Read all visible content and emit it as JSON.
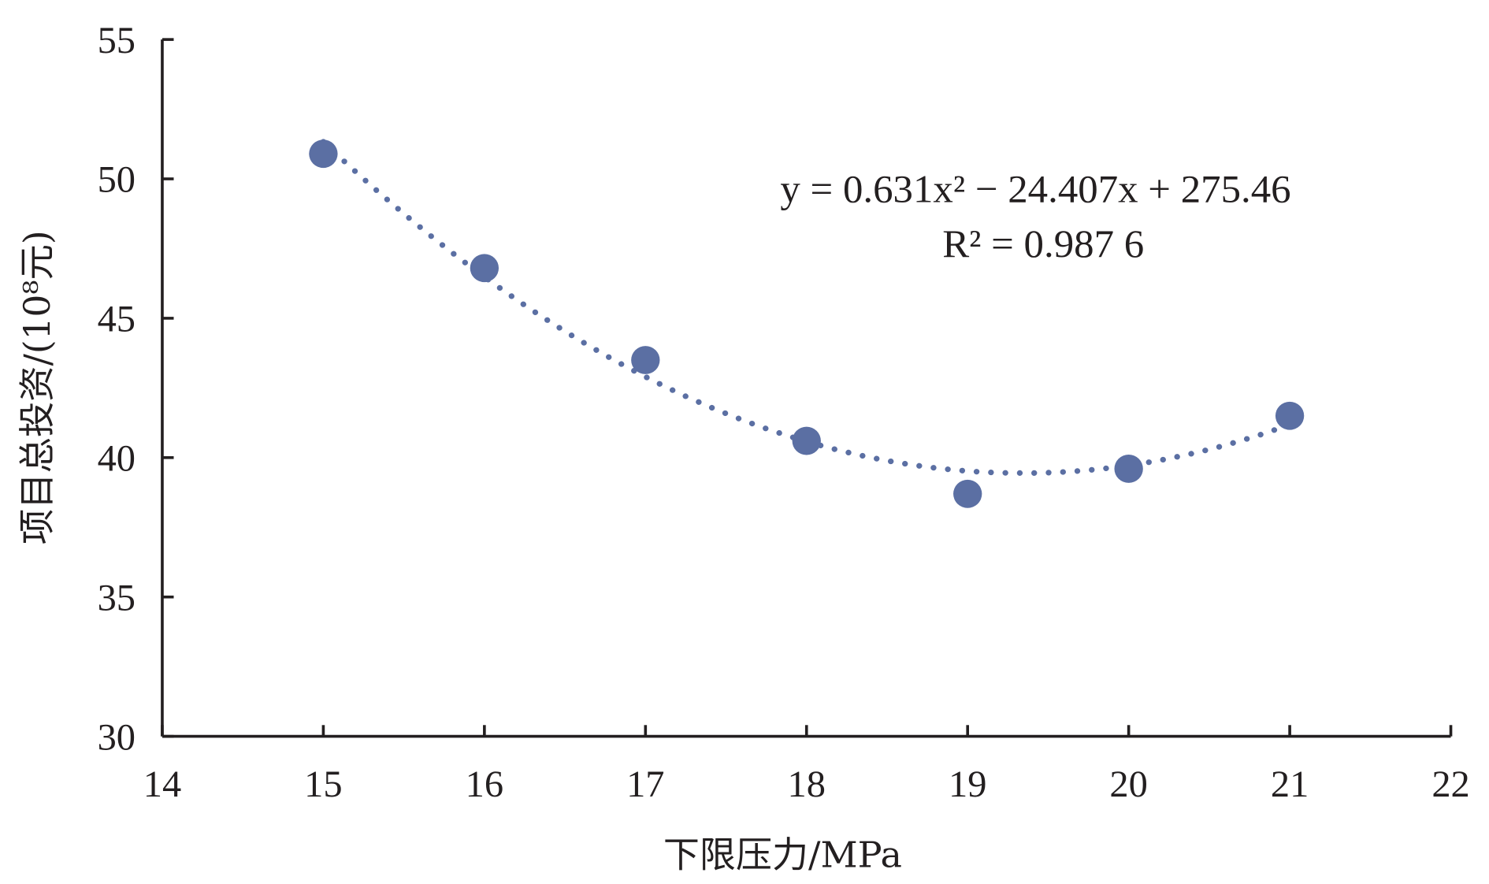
{
  "chart_data": {
    "type": "scatter",
    "title": "",
    "xlabel": "下限压力/MPa",
    "ylabel": "项目总投资/(10⁸元)",
    "xlim": [
      14,
      22
    ],
    "ylim": [
      30,
      55
    ],
    "xticks": [
      "14",
      "15",
      "16",
      "17",
      "18",
      "19",
      "20",
      "21",
      "22"
    ],
    "yticks": [
      "30",
      "35",
      "40",
      "45",
      "50",
      "55"
    ],
    "grid": false,
    "series": [
      {
        "name": "项目总投资",
        "x": [
          15,
          16,
          17,
          18,
          19,
          20,
          21
        ],
        "y": [
          50.9,
          46.8,
          43.5,
          40.6,
          38.7,
          39.6,
          41.5
        ],
        "color": "#5b6fa3"
      }
    ],
    "trendline": {
      "type": "polynomial",
      "a": 0.631,
      "b": -24.407,
      "c": 275.46,
      "color": "#5b6fa3",
      "style": "dotted"
    },
    "annotations": {
      "equation": "y = 0.631x² − 24.407x + 275.46",
      "r2": "R² = 0.987 6"
    }
  }
}
